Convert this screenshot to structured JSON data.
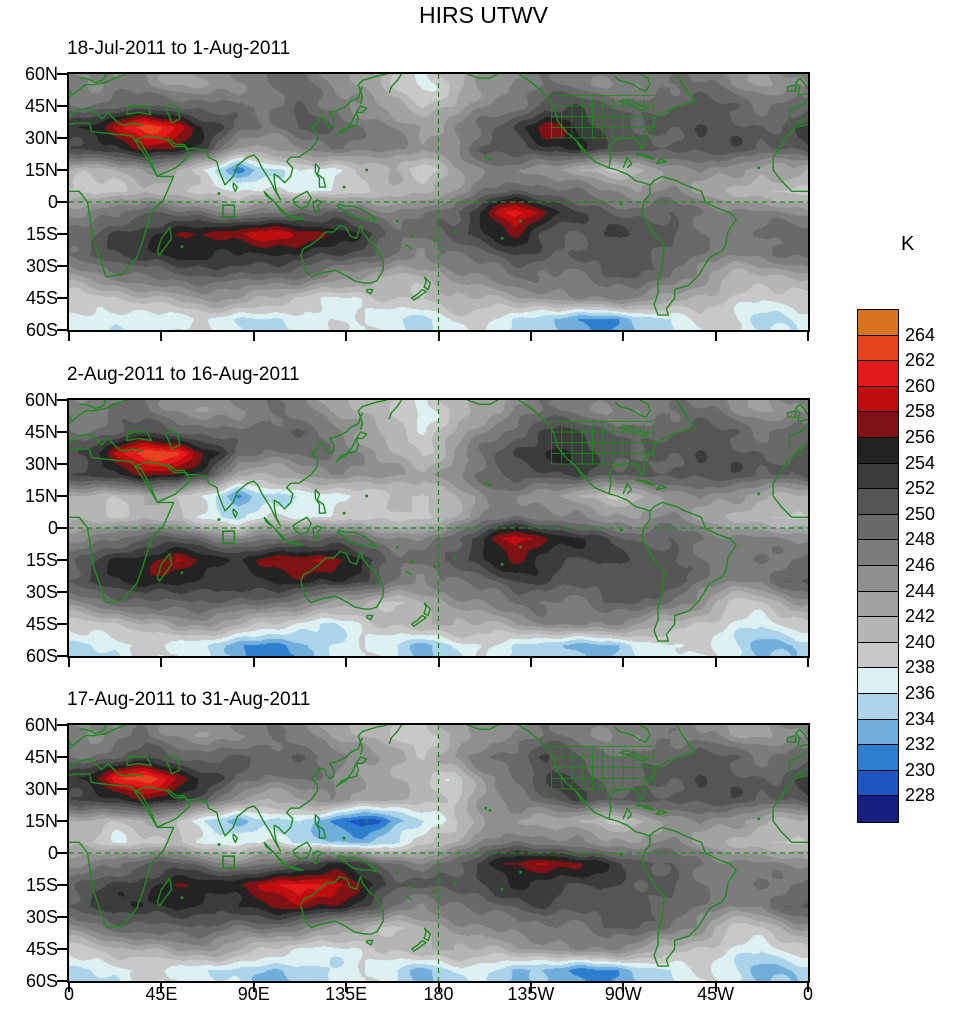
{
  "title": "HIRS UTWV",
  "colorbar": {
    "label": "K",
    "tick_labels": [
      "264",
      "262",
      "260",
      "258",
      "256",
      "254",
      "252",
      "250",
      "248",
      "246",
      "244",
      "242",
      "240",
      "238",
      "236",
      "234",
      "232",
      "230",
      "228"
    ],
    "colors_top_to_bottom": [
      "#D8731E",
      "#E8431F",
      "#E31A1C",
      "#C00D10",
      "#7E1214",
      "#232323",
      "#3C3C3C",
      "#555555",
      "#696969",
      "#7C7C7C",
      "#8F8F8F",
      "#A2A2A2",
      "#B5B5B5",
      "#C8C8C8",
      "#DDF1F3",
      "#ABD3EA",
      "#70AEDC",
      "#2E7ED0",
      "#1D55C2",
      "#161F7E"
    ]
  },
  "axes": {
    "lat_ticks": [
      "60N",
      "45N",
      "30N",
      "15N",
      "0",
      "15S",
      "30S",
      "45S",
      "60S"
    ],
    "lon_ticks": [
      "0",
      "45E",
      "90E",
      "135E",
      "180",
      "135W",
      "90W",
      "45W",
      "0"
    ]
  },
  "basemap": {
    "coastline_color": "#1E8B1E",
    "dashed_line_color": "#1E8B1E",
    "frame_color": "#000000"
  },
  "chart_data": [
    {
      "type": "heatmap",
      "title": "18-Jul-2011 to 1-Aug-2011",
      "units": "K",
      "lon_start": 7.5,
      "lon_step": 15,
      "lat_start": 55,
      "lat_step": -10,
      "levels_min": 228,
      "levels_max": 264,
      "level_step": 2,
      "values": [
        [
          246,
          246,
          246,
          244,
          244,
          246,
          248,
          248,
          246,
          244,
          240,
          238,
          240,
          244,
          246,
          248,
          248,
          246,
          246,
          248,
          248,
          246,
          244,
          246
        ],
        [
          248,
          250,
          250,
          250,
          248,
          248,
          248,
          250,
          248,
          246,
          242,
          240,
          242,
          246,
          248,
          250,
          252,
          250,
          248,
          250,
          252,
          250,
          248,
          248
        ],
        [
          254,
          258,
          263,
          260,
          254,
          250,
          248,
          250,
          250,
          248,
          246,
          244,
          246,
          248,
          252,
          258,
          254,
          252,
          250,
          250,
          252,
          250,
          250,
          252
        ],
        [
          252,
          255,
          257,
          256,
          252,
          242,
          244,
          246,
          248,
          248,
          246,
          244,
          246,
          250,
          252,
          254,
          254,
          252,
          250,
          250,
          252,
          252,
          250,
          250
        ],
        [
          240,
          242,
          244,
          242,
          238,
          231,
          236,
          238,
          236,
          240,
          242,
          238,
          244,
          246,
          246,
          244,
          242,
          240,
          242,
          244,
          246,
          244,
          242,
          244
        ],
        [
          238,
          240,
          242,
          240,
          240,
          237,
          238,
          238,
          238,
          240,
          242,
          240,
          244,
          248,
          250,
          250,
          248,
          246,
          244,
          246,
          244,
          242,
          240,
          240
        ],
        [
          246,
          248,
          250,
          248,
          248,
          246,
          248,
          250,
          250,
          248,
          246,
          248,
          250,
          256,
          261,
          256,
          252,
          250,
          250,
          250,
          248,
          246,
          246,
          246
        ],
        [
          248,
          252,
          254,
          256,
          257,
          258,
          259,
          258,
          256,
          254,
          250,
          248,
          250,
          254,
          256,
          252,
          250,
          252,
          252,
          250,
          248,
          248,
          248,
          250
        ],
        [
          250,
          252,
          254,
          254,
          254,
          254,
          254,
          254,
          252,
          250,
          248,
          246,
          248,
          250,
          252,
          250,
          250,
          250,
          252,
          250,
          248,
          246,
          246,
          248
        ],
        [
          244,
          246,
          248,
          250,
          250,
          250,
          248,
          248,
          246,
          244,
          242,
          242,
          244,
          246,
          248,
          248,
          248,
          250,
          250,
          248,
          244,
          242,
          242,
          242
        ],
        [
          240,
          240,
          242,
          242,
          244,
          244,
          242,
          240,
          238,
          238,
          240,
          240,
          242,
          242,
          244,
          244,
          246,
          246,
          246,
          244,
          242,
          240,
          238,
          238
        ],
        [
          238,
          236,
          236,
          238,
          238,
          236,
          236,
          236,
          238,
          238,
          236,
          236,
          238,
          238,
          236,
          234,
          233,
          232,
          234,
          236,
          238,
          238,
          236,
          236
        ]
      ]
    },
    {
      "type": "heatmap",
      "title": "2-Aug-2011 to 16-Aug-2011",
      "units": "K",
      "lon_start": 7.5,
      "lon_step": 15,
      "lat_start": 55,
      "lat_step": -10,
      "levels_min": 228,
      "levels_max": 264,
      "level_step": 2,
      "values": [
        [
          246,
          248,
          248,
          246,
          244,
          246,
          248,
          246,
          244,
          242,
          240,
          238,
          240,
          242,
          246,
          248,
          248,
          246,
          246,
          248,
          248,
          246,
          244,
          246
        ],
        [
          248,
          250,
          252,
          250,
          248,
          248,
          250,
          250,
          248,
          244,
          240,
          238,
          242,
          246,
          250,
          252,
          252,
          250,
          248,
          250,
          252,
          250,
          248,
          248
        ],
        [
          252,
          258,
          263,
          263,
          256,
          250,
          248,
          248,
          248,
          246,
          242,
          240,
          244,
          248,
          252,
          254,
          254,
          252,
          250,
          250,
          252,
          250,
          250,
          250
        ],
        [
          252,
          255,
          257,
          256,
          252,
          241,
          242,
          244,
          246,
          246,
          244,
          242,
          246,
          248,
          252,
          252,
          252,
          250,
          250,
          250,
          252,
          252,
          250,
          250
        ],
        [
          242,
          240,
          242,
          240,
          238,
          232,
          236,
          236,
          236,
          238,
          240,
          240,
          242,
          246,
          246,
          244,
          242,
          240,
          242,
          244,
          246,
          244,
          242,
          242
        ],
        [
          240,
          240,
          242,
          240,
          238,
          234,
          238,
          238,
          238,
          240,
          240,
          238,
          242,
          246,
          248,
          248,
          246,
          244,
          244,
          246,
          244,
          242,
          240,
          240
        ],
        [
          246,
          248,
          250,
          250,
          248,
          246,
          248,
          250,
          250,
          248,
          246,
          246,
          250,
          255,
          259,
          256,
          254,
          252,
          250,
          250,
          248,
          246,
          246,
          246
        ],
        [
          250,
          254,
          256,
          258,
          256,
          254,
          256,
          258,
          258,
          254,
          250,
          248,
          250,
          254,
          256,
          254,
          252,
          252,
          252,
          250,
          248,
          248,
          248,
          248
        ],
        [
          252,
          254,
          256,
          254,
          252,
          254,
          254,
          256,
          254,
          252,
          248,
          246,
          248,
          250,
          252,
          252,
          250,
          250,
          252,
          252,
          248,
          246,
          246,
          250
        ],
        [
          246,
          248,
          250,
          250,
          250,
          250,
          248,
          246,
          244,
          242,
          240,
          242,
          244,
          246,
          248,
          248,
          248,
          250,
          250,
          248,
          244,
          240,
          240,
          244
        ],
        [
          240,
          240,
          242,
          244,
          244,
          242,
          240,
          238,
          236,
          238,
          240,
          242,
          242,
          242,
          244,
          246,
          246,
          246,
          244,
          242,
          240,
          238,
          236,
          238
        ],
        [
          236,
          236,
          238,
          238,
          236,
          233,
          231,
          232,
          236,
          238,
          236,
          234,
          236,
          238,
          236,
          234,
          234,
          234,
          236,
          238,
          238,
          236,
          234,
          234
        ]
      ]
    },
    {
      "type": "heatmap",
      "title": "17-Aug-2011 to 31-Aug-2011",
      "units": "K",
      "lon_start": 7.5,
      "lon_step": 15,
      "lat_start": 55,
      "lat_step": -10,
      "levels_min": 228,
      "levels_max": 264,
      "level_step": 2,
      "values": [
        [
          246,
          246,
          248,
          246,
          244,
          246,
          248,
          246,
          244,
          242,
          240,
          240,
          242,
          244,
          246,
          248,
          248,
          246,
          246,
          248,
          246,
          244,
          244,
          246
        ],
        [
          248,
          250,
          252,
          250,
          248,
          250,
          250,
          250,
          248,
          246,
          242,
          240,
          244,
          248,
          250,
          252,
          250,
          248,
          248,
          250,
          252,
          250,
          248,
          248
        ],
        [
          254,
          261,
          263,
          258,
          254,
          250,
          248,
          248,
          246,
          244,
          242,
          242,
          238,
          244,
          248,
          252,
          252,
          250,
          250,
          250,
          252,
          250,
          250,
          252
        ],
        [
          252,
          255,
          256,
          254,
          250,
          243,
          242,
          244,
          246,
          244,
          242,
          240,
          240,
          244,
          248,
          250,
          252,
          250,
          250,
          250,
          252,
          252,
          250,
          250
        ],
        [
          242,
          240,
          242,
          240,
          236,
          233,
          236,
          236,
          231,
          228,
          232,
          236,
          240,
          244,
          244,
          242,
          242,
          240,
          242,
          244,
          246,
          244,
          242,
          242
        ],
        [
          240,
          238,
          240,
          240,
          238,
          236,
          238,
          236,
          234,
          234,
          236,
          238,
          242,
          246,
          248,
          248,
          246,
          244,
          244,
          246,
          244,
          242,
          240,
          240
        ],
        [
          246,
          248,
          250,
          250,
          248,
          246,
          248,
          252,
          254,
          252,
          248,
          246,
          250,
          254,
          256,
          258,
          256,
          254,
          252,
          250,
          248,
          246,
          246,
          246
        ],
        [
          250,
          252,
          254,
          256,
          256,
          256,
          258,
          261,
          260,
          256,
          252,
          250,
          250,
          252,
          254,
          254,
          252,
          252,
          250,
          250,
          248,
          248,
          248,
          248
        ],
        [
          252,
          254,
          254,
          254,
          252,
          254,
          256,
          258,
          256,
          252,
          248,
          246,
          248,
          250,
          250,
          252,
          250,
          250,
          252,
          250,
          248,
          246,
          246,
          250
        ],
        [
          246,
          248,
          250,
          250,
          250,
          248,
          248,
          246,
          244,
          242,
          240,
          242,
          244,
          246,
          246,
          248,
          248,
          250,
          250,
          248,
          244,
          240,
          240,
          244
        ],
        [
          240,
          242,
          242,
          244,
          244,
          242,
          240,
          238,
          238,
          238,
          240,
          242,
          242,
          242,
          244,
          244,
          246,
          246,
          244,
          242,
          240,
          238,
          236,
          238
        ],
        [
          236,
          236,
          238,
          238,
          236,
          236,
          234,
          234,
          236,
          238,
          236,
          234,
          236,
          236,
          234,
          233,
          232,
          232,
          234,
          236,
          238,
          236,
          234,
          234
        ]
      ]
    }
  ]
}
